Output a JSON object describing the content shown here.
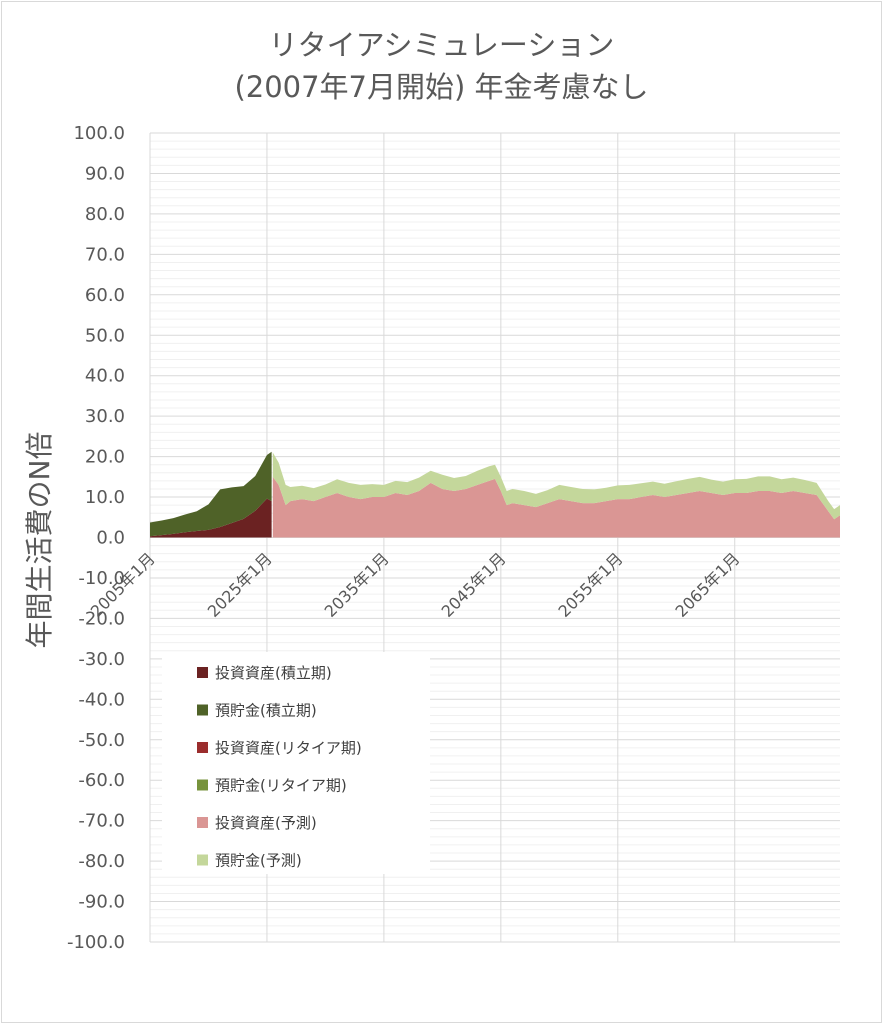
{
  "chart_data": {
    "type": "area",
    "title_line1": "リタイアシミュレーション",
    "title_line2": "(2007年7月開始) 年金考慮なし",
    "ylabel": "年間生活費のN倍",
    "xlabel": "",
    "ylim": [
      -100,
      100
    ],
    "xlim": [
      2005.0,
      2064.0
    ],
    "y_ticks": [
      "100.0",
      "90.0",
      "80.0",
      "70.0",
      "60.0",
      "50.0",
      "40.0",
      "30.0",
      "20.0",
      "10.0",
      "0.0",
      "-10.0",
      "-20.0",
      "-30.0",
      "-40.0",
      "-50.0",
      "-60.0",
      "-70.0",
      "-80.0",
      "-90.0",
      "-100.0"
    ],
    "x_ticks": [
      {
        "label": "2005年1月",
        "x": 2005
      },
      {
        "label": "2025年1月",
        "x": 2015
      },
      {
        "label": "2035年1月",
        "x": 2025
      },
      {
        "label": "2045年1月",
        "x": 2035
      },
      {
        "label": "2055年1月",
        "x": 2045
      },
      {
        "label": "2065年1月",
        "x": 2055
      }
    ],
    "grid": true,
    "legend_position": "bottom-left",
    "series": [
      {
        "name": "投資資産(積立期)",
        "color": "#6b2222",
        "stack": "accum",
        "points": [
          [
            2005.0,
            0.3
          ],
          [
            2006.0,
            0.6
          ],
          [
            2007.0,
            0.9
          ],
          [
            2008.0,
            1.3
          ],
          [
            2009.0,
            1.6
          ],
          [
            2010.0,
            1.9
          ],
          [
            2011.0,
            2.6
          ],
          [
            2012.0,
            3.6
          ],
          [
            2013.0,
            4.6
          ],
          [
            2014.0,
            6.6
          ],
          [
            2015.0,
            9.6
          ],
          [
            2015.4,
            9.0
          ]
        ]
      },
      {
        "name": "預貯金(積立期)",
        "color": "#4f6228",
        "stack": "accum",
        "points": [
          [
            2005.0,
            3.4
          ],
          [
            2006.0,
            3.6
          ],
          [
            2007.0,
            3.9
          ],
          [
            2008.0,
            4.4
          ],
          [
            2009.0,
            4.9
          ],
          [
            2010.0,
            6.3
          ],
          [
            2011.0,
            9.3
          ],
          [
            2012.0,
            8.8
          ],
          [
            2013.0,
            8.1
          ],
          [
            2014.0,
            8.6
          ],
          [
            2015.0,
            10.8
          ],
          [
            2015.4,
            12.2
          ]
        ]
      },
      {
        "name": "投資資産(リタイア期)",
        "color": "#9b2d2d",
        "stack": "retire",
        "points": []
      },
      {
        "name": "預貯金(リタイア期)",
        "color": "#77933c",
        "stack": "retire",
        "points": []
      },
      {
        "name": "投資資産(予測)",
        "color": "#da9694",
        "stack": "forecast",
        "points": [
          [
            2015.5,
            15.0
          ],
          [
            2016.0,
            13.0
          ],
          [
            2016.6,
            8.0
          ],
          [
            2017.0,
            9.0
          ],
          [
            2018.0,
            9.5
          ],
          [
            2019.0,
            9.0
          ],
          [
            2020.0,
            10.0
          ],
          [
            2021.0,
            11.0
          ],
          [
            2022.0,
            10.0
          ],
          [
            2023.0,
            9.5
          ],
          [
            2024.0,
            10.0
          ],
          [
            2025.0,
            10.0
          ],
          [
            2026.0,
            11.0
          ],
          [
            2027.0,
            10.5
          ],
          [
            2028.0,
            11.5
          ],
          [
            2029.0,
            13.5
          ],
          [
            2030.0,
            12.0
          ],
          [
            2031.0,
            11.5
          ],
          [
            2032.0,
            12.0
          ],
          [
            2033.0,
            13.0
          ],
          [
            2034.0,
            14.0
          ],
          [
            2034.5,
            14.5
          ],
          [
            2035.0,
            11.5
          ],
          [
            2035.5,
            8.0
          ],
          [
            2036.0,
            8.5
          ],
          [
            2037.0,
            8.0
          ],
          [
            2038.0,
            7.5
          ],
          [
            2039.0,
            8.5
          ],
          [
            2040.0,
            9.5
          ],
          [
            2041.0,
            9.0
          ],
          [
            2042.0,
            8.5
          ],
          [
            2043.0,
            8.5
          ],
          [
            2044.0,
            9.0
          ],
          [
            2045.0,
            9.5
          ],
          [
            2046.0,
            9.5
          ],
          [
            2047.0,
            10.0
          ],
          [
            2048.0,
            10.5
          ],
          [
            2049.0,
            10.0
          ],
          [
            2050.0,
            10.5
          ],
          [
            2051.0,
            11.0
          ],
          [
            2052.0,
            11.5
          ],
          [
            2053.0,
            11.0
          ],
          [
            2054.0,
            10.5
          ],
          [
            2055.0,
            11.0
          ],
          [
            2056.0,
            11.0
          ],
          [
            2057.0,
            11.5
          ],
          [
            2058.0,
            11.5
          ],
          [
            2059.0,
            11.0
          ],
          [
            2060.0,
            11.5
          ],
          [
            2061.0,
            11.0
          ],
          [
            2062.0,
            10.5
          ],
          [
            2063.0,
            6.5
          ],
          [
            2063.5,
            4.5
          ],
          [
            2064.0,
            5.5
          ]
        ]
      },
      {
        "name": "預貯金(予測)",
        "color": "#c4d79b",
        "stack": "forecast",
        "points": [
          [
            2015.5,
            6.0
          ],
          [
            2016.0,
            5.5
          ],
          [
            2016.6,
            5.0
          ],
          [
            2017.0,
            3.5
          ],
          [
            2018.0,
            3.3
          ],
          [
            2019.0,
            3.2
          ],
          [
            2020.0,
            3.1
          ],
          [
            2021.0,
            3.4
          ],
          [
            2022.0,
            3.5
          ],
          [
            2023.0,
            3.5
          ],
          [
            2024.0,
            3.2
          ],
          [
            2025.0,
            3.0
          ],
          [
            2026.0,
            3.0
          ],
          [
            2027.0,
            3.2
          ],
          [
            2028.0,
            3.3
          ],
          [
            2029.0,
            3.0
          ],
          [
            2030.0,
            3.5
          ],
          [
            2031.0,
            3.2
          ],
          [
            2032.0,
            3.2
          ],
          [
            2033.0,
            3.5
          ],
          [
            2034.0,
            3.6
          ],
          [
            2034.5,
            3.5
          ],
          [
            2035.0,
            3.5
          ],
          [
            2035.5,
            3.5
          ],
          [
            2036.0,
            3.5
          ],
          [
            2037.0,
            3.5
          ],
          [
            2038.0,
            3.3
          ],
          [
            2039.0,
            3.2
          ],
          [
            2040.0,
            3.5
          ],
          [
            2041.0,
            3.5
          ],
          [
            2042.0,
            3.5
          ],
          [
            2043.0,
            3.4
          ],
          [
            2044.0,
            3.3
          ],
          [
            2045.0,
            3.4
          ],
          [
            2046.0,
            3.5
          ],
          [
            2047.0,
            3.4
          ],
          [
            2048.0,
            3.3
          ],
          [
            2049.0,
            3.3
          ],
          [
            2050.0,
            3.4
          ],
          [
            2051.0,
            3.5
          ],
          [
            2052.0,
            3.5
          ],
          [
            2053.0,
            3.3
          ],
          [
            2054.0,
            3.3
          ],
          [
            2055.0,
            3.4
          ],
          [
            2056.0,
            3.5
          ],
          [
            2057.0,
            3.6
          ],
          [
            2058.0,
            3.6
          ],
          [
            2059.0,
            3.4
          ],
          [
            2060.0,
            3.3
          ],
          [
            2061.0,
            3.2
          ],
          [
            2062.0,
            3.0
          ],
          [
            2063.0,
            2.5
          ],
          [
            2063.5,
            2.5
          ],
          [
            2064.0,
            2.5
          ]
        ]
      }
    ]
  }
}
